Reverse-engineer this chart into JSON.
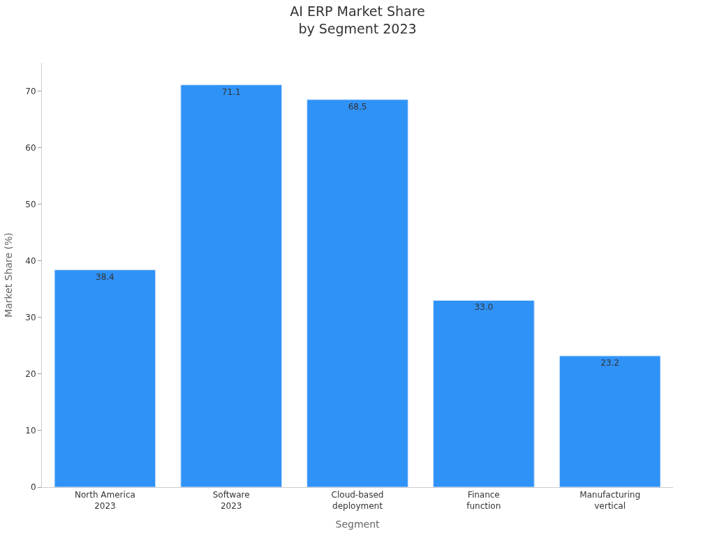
{
  "chart_data": {
    "type": "bar",
    "title": "AI ERP Market Share\nby Segment 2023",
    "xlabel": "Segment",
    "ylabel": "Market Share (%)",
    "categories": [
      "North America\n2023",
      "Software\n2023",
      "Cloud-based\ndeployment",
      "Finance\nfunction",
      "Manufacturing\nvertical"
    ],
    "values": [
      38.4,
      71.1,
      68.5,
      33.0,
      23.2
    ],
    "value_labels": [
      "38.4",
      "71.1",
      "68.5",
      "33.0",
      "23.2"
    ],
    "color": "#2f92f7",
    "ylim": [
      0,
      75
    ],
    "yticks": [
      0,
      10,
      20,
      30,
      40,
      50,
      60,
      70
    ]
  }
}
